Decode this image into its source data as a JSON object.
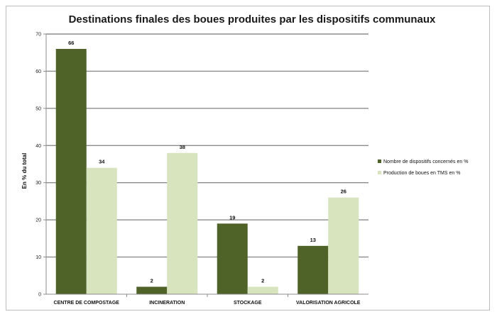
{
  "chart_data": {
    "type": "bar",
    "title": "Destinations finales des boues produites par les dispositifs communaux",
    "xlabel": "",
    "ylabel": "En % du total",
    "ylim": [
      0,
      70
    ],
    "yticks": [
      0,
      10,
      20,
      30,
      40,
      50,
      60,
      70
    ],
    "grid": true,
    "legend_position": "right",
    "categories": [
      "CENTRE DE COMPOSTAGE",
      "INCINERATION",
      "STOCKAGE",
      "VALORISATION AGRICOLE"
    ],
    "series": [
      {
        "name": "Nombre de dispositifs concernés en %",
        "values": [
          66,
          2,
          19,
          13
        ],
        "color": "#4f6228"
      },
      {
        "name": "Production de boues en TMS en %",
        "values": [
          34,
          38,
          2,
          26
        ],
        "color": "#d7e4bd"
      }
    ],
    "data_labels": [
      [
        "66",
        "2",
        "19",
        "13"
      ],
      [
        "34",
        "38",
        "2",
        "26"
      ]
    ]
  }
}
